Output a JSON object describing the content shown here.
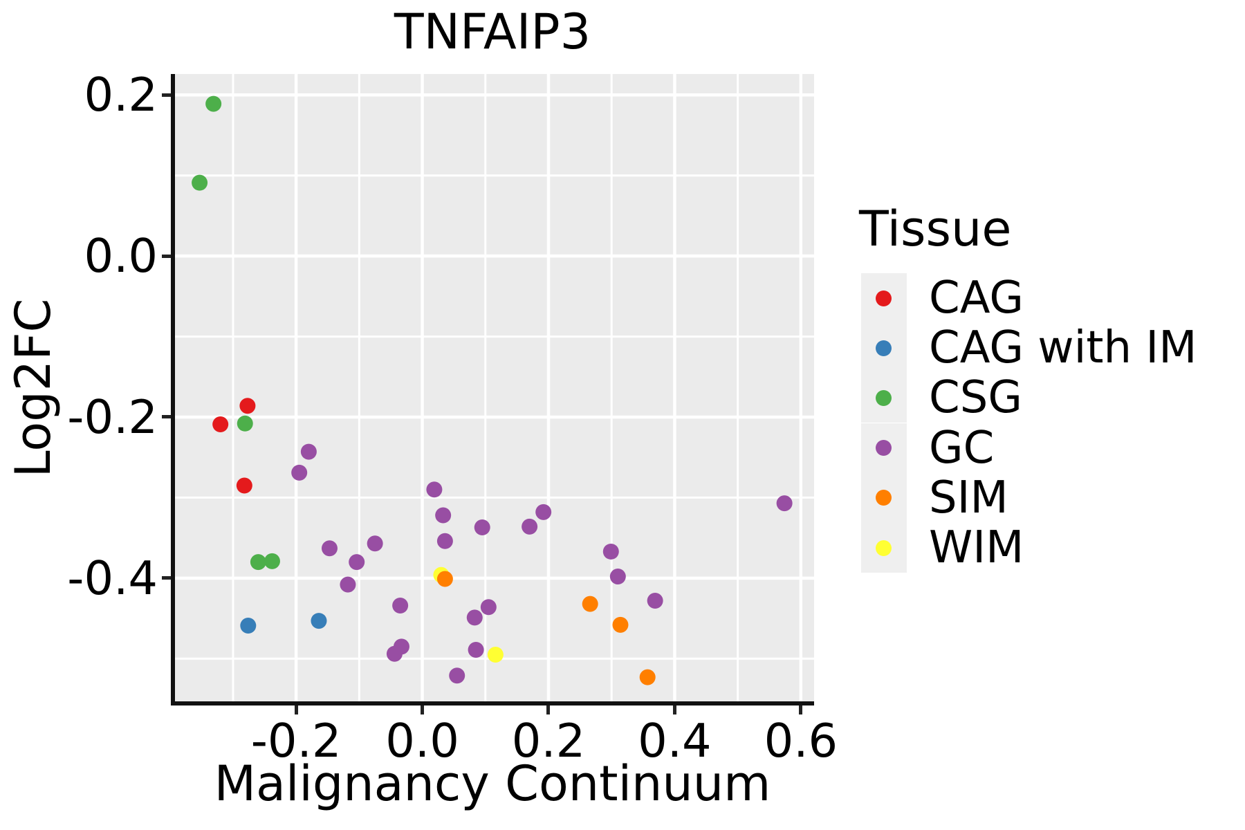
{
  "title": "TNFAIP3",
  "chart_data": {
    "type": "scatter",
    "title": "TNFAIP3",
    "xlabel": "Malignancy Continuum",
    "ylabel": "Log2FC",
    "xlim": [
      -0.392,
      0.621
    ],
    "ylim": [
      -0.553,
      0.226
    ],
    "grid": true,
    "panel_background": "#EBEBEB",
    "grid_color": "#FFFFFF",
    "x_major_ticks": [
      -0.2,
      0.0,
      0.2,
      0.4,
      0.6
    ],
    "x_tick_labels": [
      "-0.2",
      "0.0",
      "0.2",
      "0.4",
      "0.6"
    ],
    "x_minor_ticks": [
      -0.3,
      -0.1,
      0.1,
      0.3,
      0.5
    ],
    "y_major_ticks": [
      0.2,
      0.0,
      -0.2,
      -0.4
    ],
    "y_tick_labels": [
      "0.2",
      "0.0",
      "-0.2",
      "-0.4"
    ],
    "y_minor_ticks": [
      0.1,
      -0.1,
      -0.3,
      -0.5
    ],
    "legend_title": "Tissue",
    "legend_position": "right",
    "point_radius": 11.5,
    "z_order": [
      "CAG",
      "CAG with IM",
      "CSG",
      "GC",
      "WIM",
      "SIM"
    ],
    "series": [
      {
        "name": "CAG",
        "color": "#E41A1C",
        "points": [
          [
            -0.277,
            -0.186
          ],
          [
            -0.32,
            -0.209
          ],
          [
            -0.282,
            -0.285
          ]
        ]
      },
      {
        "name": "CAG with IM",
        "color": "#377EB8",
        "points": [
          [
            -0.276,
            -0.459
          ],
          [
            -0.164,
            -0.453
          ]
        ]
      },
      {
        "name": "CSG",
        "color": "#4DAF4A",
        "points": [
          [
            -0.331,
            0.189
          ],
          [
            -0.353,
            0.091
          ],
          [
            -0.281,
            -0.208
          ],
          [
            -0.26,
            -0.38
          ],
          [
            -0.238,
            -0.379
          ]
        ]
      },
      {
        "name": "GC",
        "color": "#984EA3",
        "points": [
          [
            -0.18,
            -0.243
          ],
          [
            -0.195,
            -0.269
          ],
          [
            0.019,
            -0.29
          ],
          [
            0.033,
            -0.322
          ],
          [
            0.036,
            -0.354
          ],
          [
            0.095,
            -0.337
          ],
          [
            0.17,
            -0.336
          ],
          [
            0.192,
            -0.318
          ],
          [
            -0.147,
            -0.363
          ],
          [
            -0.075,
            -0.357
          ],
          [
            -0.104,
            -0.38
          ],
          [
            -0.118,
            -0.408
          ],
          [
            -0.035,
            -0.434
          ],
          [
            0.083,
            -0.449
          ],
          [
            0.105,
            -0.436
          ],
          [
            -0.044,
            -0.494
          ],
          [
            -0.033,
            -0.485
          ],
          [
            0.085,
            -0.489
          ],
          [
            0.055,
            -0.521
          ],
          [
            0.299,
            -0.367
          ],
          [
            0.31,
            -0.398
          ],
          [
            0.369,
            -0.428
          ],
          [
            0.574,
            -0.307
          ]
        ]
      },
      {
        "name": "SIM",
        "color": "#FF7F00",
        "points": [
          [
            0.036,
            -0.401
          ],
          [
            0.266,
            -0.432
          ],
          [
            0.314,
            -0.458
          ],
          [
            0.357,
            -0.523
          ]
        ]
      },
      {
        "name": "WIM",
        "color": "#FFFF33",
        "points": [
          [
            0.116,
            -0.495
          ],
          [
            0.03,
            -0.396
          ]
        ]
      }
    ]
  }
}
